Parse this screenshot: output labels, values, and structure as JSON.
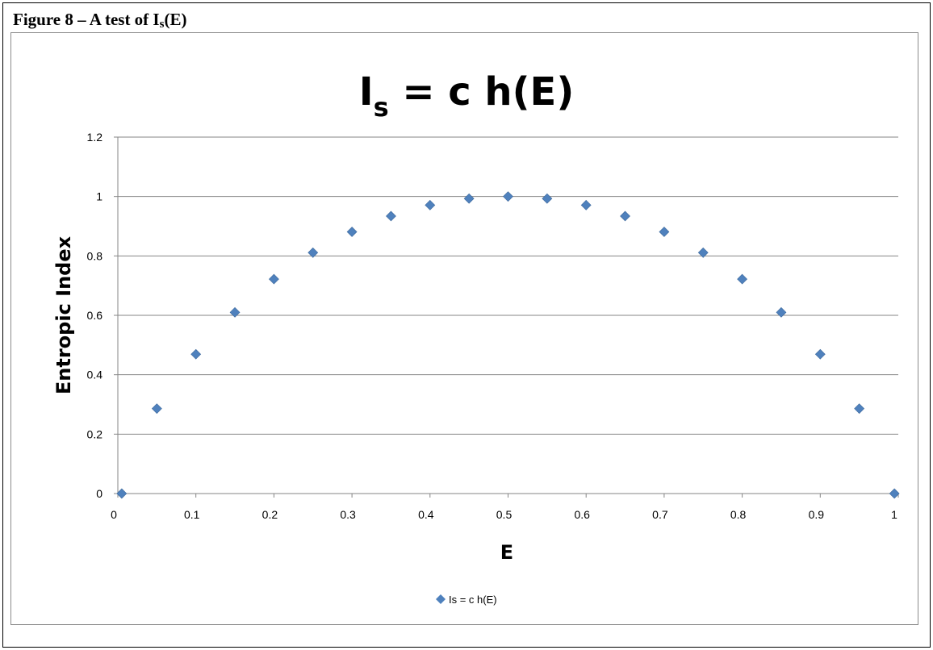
{
  "figure_caption": {
    "prefix": "Figure  8 – A  test of  I",
    "subscript": "s",
    "suffix": "(E)"
  },
  "chart_data": {
    "type": "scatter",
    "title": {
      "main": "I",
      "subscript": "s",
      "rest": " = c h(E)"
    },
    "xlabel": "E",
    "ylabel": "Entropic Index",
    "xlim": [
      0,
      1
    ],
    "ylim": [
      0,
      1.2
    ],
    "x_ticks": [
      "0",
      "0.1",
      "0.2",
      "0.3",
      "0.4",
      "0.5",
      "0.6",
      "0.7",
      "0.8",
      "0.9",
      "1"
    ],
    "y_ticks": [
      "0",
      "0.2",
      "0.4",
      "0.6",
      "0.8",
      "1",
      "1.2"
    ],
    "grid": "horizontal",
    "legend_position": "bottom",
    "marker": "diamond",
    "color": "#4f81bd",
    "series": [
      {
        "name": "Is = c h(E)",
        "x": [
          0.005,
          0.05,
          0.1,
          0.15,
          0.2,
          0.25,
          0.3,
          0.35,
          0.4,
          0.45,
          0.5,
          0.55,
          0.6,
          0.65,
          0.7,
          0.75,
          0.8,
          0.85,
          0.9,
          0.95,
          0.995
        ],
        "y": [
          0.0,
          0.286,
          0.469,
          0.61,
          0.722,
          0.811,
          0.881,
          0.934,
          0.971,
          0.993,
          1.0,
          0.993,
          0.971,
          0.934,
          0.881,
          0.811,
          0.722,
          0.61,
          0.469,
          0.286,
          0.0
        ]
      }
    ]
  }
}
